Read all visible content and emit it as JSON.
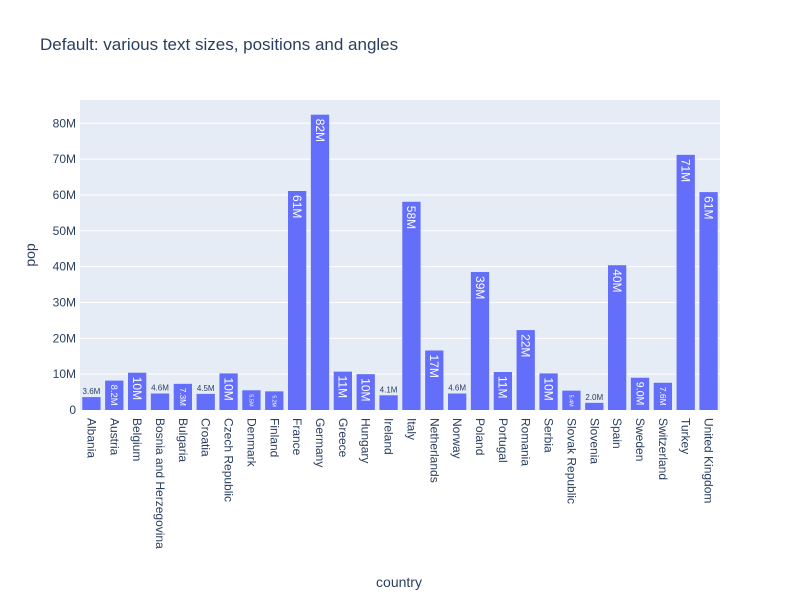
{
  "chart_data": {
    "type": "bar",
    "title": "Default: various text sizes, positions and angles",
    "xlabel": "country",
    "ylabel": "pop",
    "ylim": [
      0,
      86500000
    ],
    "y_ticks": [
      10000000,
      20000000,
      30000000,
      40000000,
      50000000,
      60000000,
      70000000,
      80000000
    ],
    "y_tick_labels": [
      "10M",
      "20M",
      "30M",
      "40M",
      "50M",
      "60M",
      "70M",
      "80M"
    ],
    "y_zero_label": "0",
    "grid": true,
    "bar_color": "#636efa",
    "plot_bg": "#e5ecf6",
    "categories": [
      "Albania",
      "Austria",
      "Belgium",
      "Bosnia and Herzegovina",
      "Bulgaria",
      "Croatia",
      "Czech Republic",
      "Denmark",
      "Finland",
      "France",
      "Germany",
      "Greece",
      "Hungary",
      "Ireland",
      "Italy",
      "Netherlands",
      "Norway",
      "Poland",
      "Portugal",
      "Romania",
      "Serbia",
      "Slovak Republic",
      "Slovenia",
      "Spain",
      "Sweden",
      "Switzerland",
      "Turkey",
      "United Kingdom"
    ],
    "values": [
      3600000,
      8200000,
      10400000,
      4600000,
      7300000,
      4500000,
      10200000,
      5500000,
      5200000,
      61100000,
      82400000,
      10700000,
      10000000,
      4100000,
      58100000,
      16600000,
      4600000,
      38500000,
      10600000,
      22300000,
      10200000,
      5400000,
      2000000,
      40400000,
      9000000,
      7600000,
      71200000,
      60800000
    ],
    "data_labels": [
      "3.6M",
      "8.2M",
      "10M",
      "4.6M",
      "7.3M",
      "4.5M",
      "10M",
      "5.5M",
      "5.2M",
      "61M",
      "82M",
      "11M",
      "10M",
      "4.1M",
      "58M",
      "17M",
      "4.6M",
      "39M",
      "11M",
      "22M",
      "10M",
      "5.4M",
      "2.0M",
      "40M",
      "9.0M",
      "7.6M",
      "71M",
      "61M"
    ]
  }
}
